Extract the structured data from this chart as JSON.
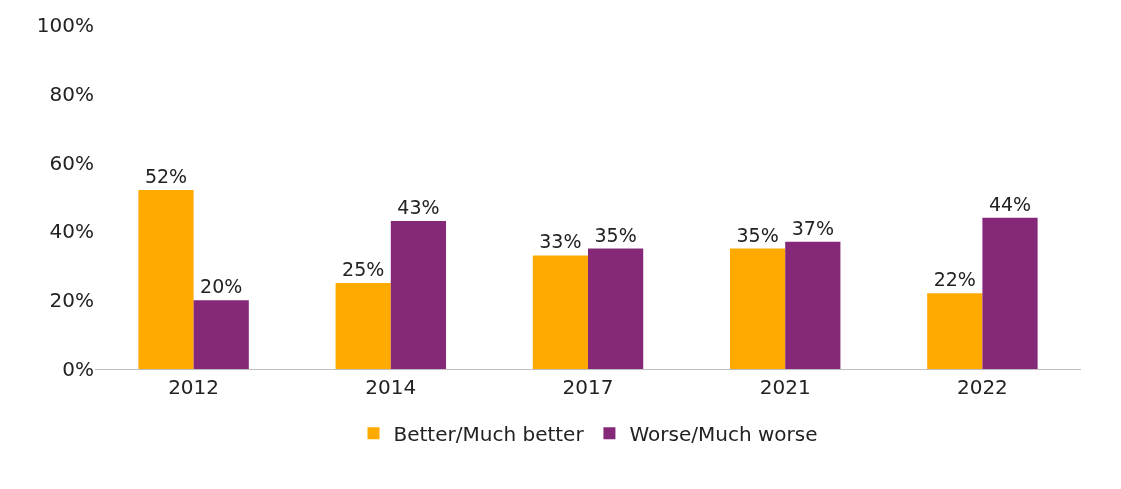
{
  "chart_data": {
    "type": "bar",
    "categories": [
      "2012",
      "2014",
      "2017",
      "2021",
      "2022"
    ],
    "series": [
      {
        "name": "Better/Much better",
        "color": "#ffaa00",
        "values": [
          52,
          25,
          33,
          35,
          22
        ],
        "value_labels": [
          "52%",
          "25%",
          "33%",
          "35%",
          "22%"
        ]
      },
      {
        "name": "Worse/Much worse",
        "color": "#852878",
        "values": [
          20,
          43,
          35,
          37,
          44
        ],
        "value_labels": [
          "20%",
          "43%",
          "35%",
          "37%",
          "44%"
        ]
      }
    ],
    "ylim": [
      0,
      100
    ],
    "yticks": [
      {
        "value": 0,
        "label": "0%"
      },
      {
        "value": 20,
        "label": "20%"
      },
      {
        "value": 40,
        "label": "40%"
      },
      {
        "value": 60,
        "label": "60%"
      },
      {
        "value": 80,
        "label": "80%"
      },
      {
        "value": 100,
        "label": "100%"
      }
    ],
    "legend": "bottom"
  }
}
